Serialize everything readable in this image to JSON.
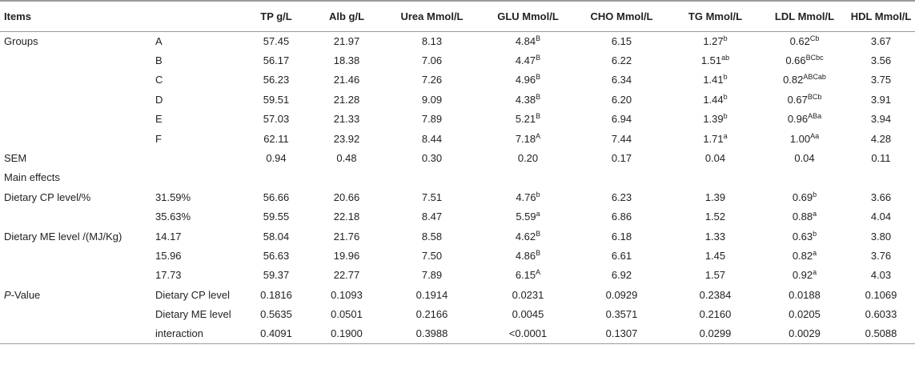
{
  "table": {
    "headers": [
      "Items",
      "",
      "TP g/L",
      "Alb g/L",
      "Urea Mmol/L",
      "GLU Mmol/L",
      "CHO Mmol/L",
      "TG Mmol/L",
      "LDL Mmol/L",
      "HDL Mmol/L"
    ],
    "rows": [
      {
        "label": "Groups",
        "sub": "A",
        "cells": [
          [
            "57.45",
            ""
          ],
          [
            "21.97",
            ""
          ],
          [
            "8.13",
            ""
          ],
          [
            "4.84",
            "B"
          ],
          [
            "6.15",
            ""
          ],
          [
            "1.27",
            "b"
          ],
          [
            "0.62",
            "Cb"
          ],
          [
            "3.67",
            ""
          ]
        ]
      },
      {
        "label": "",
        "sub": "B",
        "cells": [
          [
            "56.17",
            ""
          ],
          [
            "18.38",
            ""
          ],
          [
            "7.06",
            ""
          ],
          [
            "4.47",
            "B"
          ],
          [
            "6.22",
            ""
          ],
          [
            "1.51",
            "ab"
          ],
          [
            "0.66",
            "BCbc"
          ],
          [
            "3.56",
            ""
          ]
        ]
      },
      {
        "label": "",
        "sub": "C",
        "cells": [
          [
            "56.23",
            ""
          ],
          [
            "21.46",
            ""
          ],
          [
            "7.26",
            ""
          ],
          [
            "4.96",
            "B"
          ],
          [
            "6.34",
            ""
          ],
          [
            "1.41",
            "b"
          ],
          [
            "0.82",
            "ABCab"
          ],
          [
            "3.75",
            ""
          ]
        ]
      },
      {
        "label": "",
        "sub": "D",
        "cells": [
          [
            "59.51",
            ""
          ],
          [
            "21.28",
            ""
          ],
          [
            "9.09",
            ""
          ],
          [
            "4.38",
            "B"
          ],
          [
            "6.20",
            ""
          ],
          [
            "1.44",
            "b"
          ],
          [
            "0.67",
            "BCb"
          ],
          [
            "3.91",
            ""
          ]
        ]
      },
      {
        "label": "",
        "sub": "E",
        "cells": [
          [
            "57.03",
            ""
          ],
          [
            "21.33",
            ""
          ],
          [
            "7.89",
            ""
          ],
          [
            "5.21",
            "B"
          ],
          [
            "6.94",
            ""
          ],
          [
            "1.39",
            "b"
          ],
          [
            "0.96",
            "ABa"
          ],
          [
            "3.94",
            ""
          ]
        ]
      },
      {
        "label": "",
        "sub": "F",
        "cells": [
          [
            "62.11",
            ""
          ],
          [
            "23.92",
            ""
          ],
          [
            "8.44",
            ""
          ],
          [
            "7.18",
            "A"
          ],
          [
            "7.44",
            ""
          ],
          [
            "1.71",
            "a"
          ],
          [
            "1.00",
            "Aa"
          ],
          [
            "4.28",
            ""
          ]
        ]
      },
      {
        "label": "SEM",
        "sub": "",
        "cells": [
          [
            "0.94",
            ""
          ],
          [
            "0.48",
            ""
          ],
          [
            "0.30",
            ""
          ],
          [
            "0.20",
            ""
          ],
          [
            "0.17",
            ""
          ],
          [
            "0.04",
            ""
          ],
          [
            "0.04",
            ""
          ],
          [
            "0.11",
            ""
          ]
        ]
      },
      {
        "label": "Main effects",
        "sub": "",
        "cells": [
          [
            "",
            ""
          ],
          [
            "",
            ""
          ],
          [
            "",
            ""
          ],
          [
            "",
            ""
          ],
          [
            "",
            ""
          ],
          [
            "",
            ""
          ],
          [
            "",
            ""
          ],
          [
            "",
            ""
          ]
        ]
      },
      {
        "label": "Dietary CP level/%",
        "sub": "31.59%",
        "cells": [
          [
            "56.66",
            ""
          ],
          [
            "20.66",
            ""
          ],
          [
            "7.51",
            ""
          ],
          [
            "4.76",
            "b"
          ],
          [
            "6.23",
            ""
          ],
          [
            "1.39",
            ""
          ],
          [
            "0.69",
            "b"
          ],
          [
            "3.66",
            ""
          ]
        ]
      },
      {
        "label": "",
        "sub": "35.63%",
        "cells": [
          [
            "59.55",
            ""
          ],
          [
            "22.18",
            ""
          ],
          [
            "8.47",
            ""
          ],
          [
            "5.59",
            "a"
          ],
          [
            "6.86",
            ""
          ],
          [
            "1.52",
            ""
          ],
          [
            "0.88",
            "a"
          ],
          [
            "4.04",
            ""
          ]
        ]
      },
      {
        "label": "Dietary ME level /(MJ/Kg)",
        "sub": "14.17",
        "cells": [
          [
            "58.04",
            ""
          ],
          [
            "21.76",
            ""
          ],
          [
            "8.58",
            ""
          ],
          [
            "4.62",
            "B"
          ],
          [
            "6.18",
            ""
          ],
          [
            "1.33",
            ""
          ],
          [
            "0.63",
            "b"
          ],
          [
            "3.80",
            ""
          ]
        ]
      },
      {
        "label": "",
        "sub": "15.96",
        "cells": [
          [
            "56.63",
            ""
          ],
          [
            "19.96",
            ""
          ],
          [
            "7.50",
            ""
          ],
          [
            "4.86",
            "B"
          ],
          [
            "6.61",
            ""
          ],
          [
            "1.45",
            ""
          ],
          [
            "0.82",
            "a"
          ],
          [
            "3.76",
            ""
          ]
        ]
      },
      {
        "label": "",
        "sub": "17.73",
        "cells": [
          [
            "59.37",
            ""
          ],
          [
            "22.77",
            ""
          ],
          [
            "7.89",
            ""
          ],
          [
            "6.15",
            "A"
          ],
          [
            "6.92",
            ""
          ],
          [
            "1.57",
            ""
          ],
          [
            "0.92",
            "a"
          ],
          [
            "4.03",
            ""
          ]
        ]
      },
      {
        "label_italic": "P",
        "label": "-Value",
        "sub": "Dietary CP level",
        "cells": [
          [
            "0.1816",
            ""
          ],
          [
            "0.1093",
            ""
          ],
          [
            "0.1914",
            ""
          ],
          [
            "0.0231",
            ""
          ],
          [
            "0.0929",
            ""
          ],
          [
            "0.2384",
            ""
          ],
          [
            "0.0188",
            ""
          ],
          [
            "0.1069",
            ""
          ]
        ]
      },
      {
        "label": "",
        "sub": "Dietary ME level",
        "cells": [
          [
            "0.5635",
            ""
          ],
          [
            "0.0501",
            ""
          ],
          [
            "0.2166",
            ""
          ],
          [
            "0.0045",
            ""
          ],
          [
            "0.3571",
            ""
          ],
          [
            "0.2160",
            ""
          ],
          [
            "0.0205",
            ""
          ],
          [
            "0.6033",
            ""
          ]
        ]
      },
      {
        "label": "",
        "sub": "interaction",
        "cells": [
          [
            "0.4091",
            ""
          ],
          [
            "0.1900",
            ""
          ],
          [
            "0.3988",
            ""
          ],
          [
            "<0.0001",
            ""
          ],
          [
            "0.1307",
            ""
          ],
          [
            "0.0299",
            ""
          ],
          [
            "0.0029",
            ""
          ],
          [
            "0.5088",
            ""
          ]
        ]
      }
    ]
  }
}
